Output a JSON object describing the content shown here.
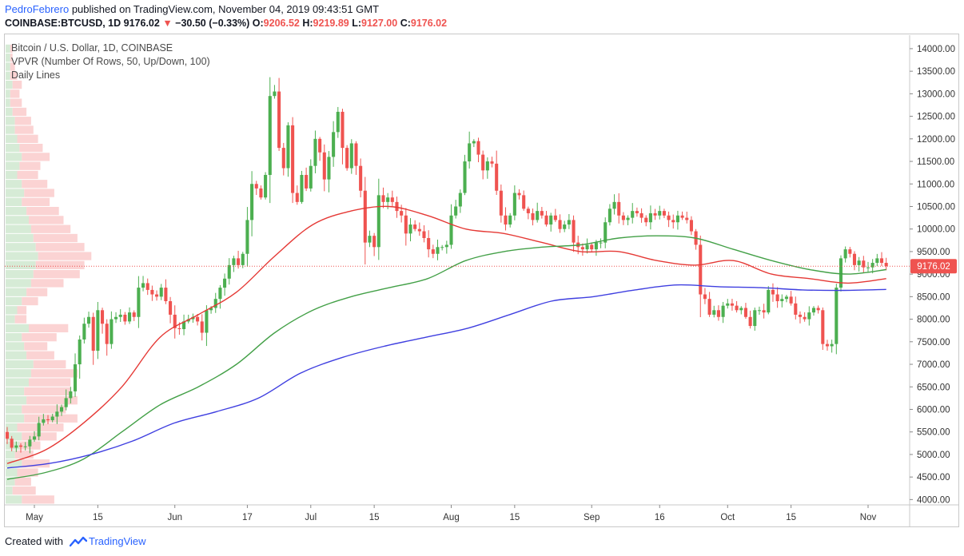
{
  "header": {
    "author": "PedroFebrero",
    "published_text": " published on TradingView.com, November 04, 2019 09:43:51 GMT",
    "symbol_line": "COINBASE:BTCUSD, 1D",
    "last_price": "9176.02",
    "change_arrow": "▼",
    "change": "−30.50 (−0.33%)",
    "o_label": "O:",
    "o_value": "9206.52",
    "h_label": "H:",
    "h_value": "9219.89",
    "l_label": "L:",
    "l_value": "9127.00",
    "c_label": "C:",
    "c_value": "9176.02"
  },
  "legend": {
    "title": "Bitcoin / U.S. Dollar, 1D, COINBASE",
    "indicator": "VPVR (Number Of Rows, 50, Up/Down, 100)",
    "lines": "Daily Lines"
  },
  "footer": {
    "created_with": "Created with",
    "brand": "TradingView"
  },
  "colors": {
    "up": "#4caf50",
    "down": "#ef5350",
    "ma_red": "#e53935",
    "ma_green": "#43a047",
    "ma_blue": "#3f3fe0",
    "vp_up": "#d6ebd6",
    "vp_down": "#fbd3d3",
    "price_label_bg": "#ef5350"
  },
  "chart_data": {
    "type": "candlestick",
    "price_axis": {
      "ylim": [
        3900,
        14300
      ],
      "ticks": [
        "14000.00",
        "13500.00",
        "13000.00",
        "12500.00",
        "12000.00",
        "11500.00",
        "11000.00",
        "10500.00",
        "10000.00",
        "9500.00",
        "9000.00",
        "8500.00",
        "8000.00",
        "7500.00",
        "7000.00",
        "6500.00",
        "6000.00",
        "5500.00",
        "5000.00",
        "4500.00",
        "4000.00"
      ],
      "last_price_label": "9176.02"
    },
    "time_axis": {
      "start_date": "2019-04-25",
      "end_date": "2019-11-04",
      "labels": [
        {
          "label": "May",
          "date": "2019-05-01"
        },
        {
          "label": "15",
          "date": "2019-05-15"
        },
        {
          "label": "Jun",
          "date": "2019-06-01"
        },
        {
          "label": "17",
          "date": "2019-06-17"
        },
        {
          "label": "Jul",
          "date": "2019-07-01"
        },
        {
          "label": "15",
          "date": "2019-07-15"
        },
        {
          "label": "Aug",
          "date": "2019-08-01"
        },
        {
          "label": "15",
          "date": "2019-08-15"
        },
        {
          "label": "Sep",
          "date": "2019-09-01"
        },
        {
          "label": "16",
          "date": "2019-09-16"
        },
        {
          "label": "Oct",
          "date": "2019-10-01"
        },
        {
          "label": "15",
          "date": "2019-10-15"
        },
        {
          "label": "Nov",
          "date": "2019-11-01"
        }
      ]
    },
    "close": [
      5350,
      5150,
      5200,
      5170,
      5180,
      5330,
      5400,
      5700,
      5780,
      5760,
      5840,
      5950,
      6050,
      6250,
      6400,
      7000,
      7550,
      7900,
      8050,
      7300,
      8200,
      7900,
      7450,
      8000,
      8050,
      8100,
      7950,
      8150,
      8050,
      8700,
      8800,
      8650,
      8550,
      8500,
      8700,
      8400,
      8100,
      7800,
      7780,
      7950,
      8000,
      8050,
      7950,
      7700,
      8200,
      8250,
      8450,
      8700,
      8900,
      9200,
      9350,
      9200,
      9450,
      10200,
      11000,
      10900,
      10700,
      11200,
      12950,
      13050,
      11800,
      11350,
      12300,
      10800,
      10600,
      11200,
      10900,
      11400,
      12000,
      11700,
      11100,
      11600,
      12150,
      12600,
      11800,
      11350,
      11900,
      11400,
      10850,
      9700,
      9850,
      9600,
      10750,
      10600,
      10700,
      10600,
      10400,
      10300,
      9900,
      10100,
      10000,
      9950,
      9800,
      9550,
      9450,
      9600,
      9600,
      9650,
      10300,
      10500,
      10800,
      11500,
      11900,
      11950,
      11650,
      11300,
      11500,
      11450,
      10850,
      10300,
      10100,
      10300,
      10800,
      10750,
      10450,
      10350,
      10200,
      10400,
      10300,
      10100,
      10300,
      10200,
      10000,
      10100,
      10200,
      9700,
      9600,
      9550,
      9650,
      9550,
      9700,
      9700,
      10150,
      10450,
      10600,
      10300,
      10200,
      10250,
      10400,
      10350,
      10250,
      10150,
      10350,
      10300,
      10400,
      10300,
      10200,
      10150,
      10300,
      10250,
      10200,
      9950,
      9650,
      8550,
      8450,
      8100,
      8200,
      8050,
      8300,
      8350,
      8300,
      8200,
      8250,
      8050,
      7850,
      8200,
      8200,
      8150,
      8650,
      8550,
      8400,
      8450,
      8500,
      8350,
      8100,
      8050,
      8000,
      8150,
      8250,
      8200,
      7450,
      7400,
      7450,
      8700,
      9350,
      9550,
      9450,
      9200,
      9300,
      9150,
      9150,
      9250,
      9350,
      9250,
      9176
    ],
    "series": [
      {
        "name": "",
        "values": [
          4800,
          5100,
          5700,
          6500,
          7600,
          8100,
          8600,
          9400,
          10100,
          10400,
          10500,
          10300,
          10000,
          9900,
          9700,
          9500,
          9500,
          9300,
          9200,
          9300,
          9000,
          8900,
          8800,
          8900
        ]
      },
      {
        "name": "",
        "values": [
          4450,
          4600,
          4900,
          5500,
          6100,
          6500,
          7000,
          7700,
          8200,
          8500,
          8700,
          8900,
          9300,
          9500,
          9600,
          9650,
          9800,
          9850,
          9800,
          9550,
          9300,
          9100,
          9000,
          9100
        ]
      },
      {
        "name": "",
        "values": [
          4700,
          4800,
          5000,
          5300,
          5700,
          5950,
          6250,
          6800,
          7150,
          7400,
          7600,
          7800,
          8100,
          8400,
          8500,
          8650,
          8760,
          8720,
          8700,
          8650,
          8640,
          8660
        ]
      }
    ],
    "volume_profile": {
      "price_step": 200,
      "up": [
        14,
        6,
        8,
        10,
        14,
        8,
        12,
        14,
        10,
        16,
        14,
        18,
        16,
        20,
        22,
        24,
        18,
        16,
        14,
        20,
        8,
        10,
        14,
        18,
        22,
        24,
        26,
        28,
        26,
        24,
        22,
        20,
        18,
        14,
        16,
        14,
        10,
        12,
        14,
        12,
        10,
        8,
        8,
        6,
        4,
        4,
        6,
        4,
        4,
        4,
        4
      ],
      "down": [
        28,
        20,
        14,
        18,
        24,
        16,
        18,
        30,
        40,
        46,
        38,
        44,
        40,
        36,
        40,
        28,
        24,
        20,
        30,
        34,
        10,
        8,
        14,
        18,
        28,
        40,
        42,
        46,
        42,
        38,
        34,
        30,
        28,
        24,
        26,
        22,
        18,
        18,
        24,
        20,
        18,
        16,
        14,
        12,
        10,
        8,
        8,
        6,
        4,
        2,
        2
      ]
    }
  }
}
